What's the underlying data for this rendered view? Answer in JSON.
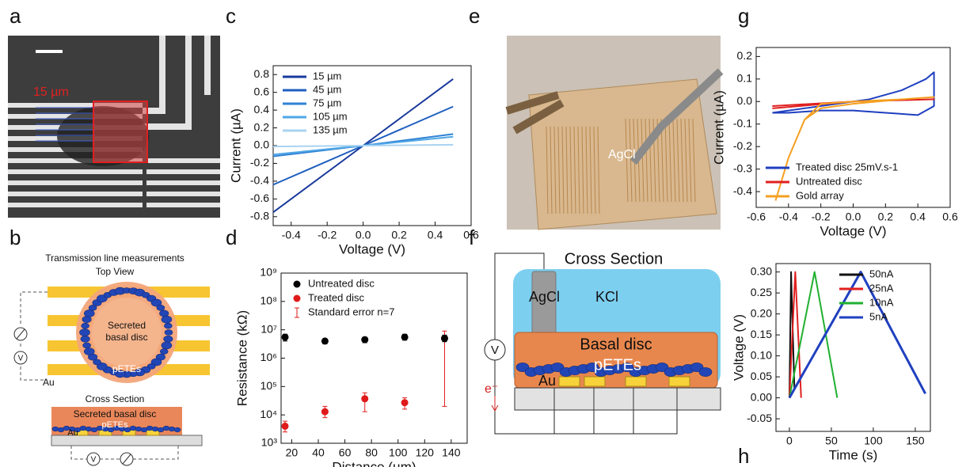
{
  "panel_labels": [
    "a",
    "b",
    "c",
    "d",
    "e",
    "f",
    "g",
    "h"
  ],
  "figure_a": {
    "scale_label": "15 µm"
  },
  "figure_b": {
    "title": "Transmission line measurements",
    "top_view": "Top View",
    "disc": [
      "Secreted",
      "basal disc"
    ],
    "electrodes": "pETEs",
    "gold": "Au",
    "voltmeter": "V",
    "cross_section": "Cross Section",
    "cs_disc": "Secreted basal disc",
    "cs_electrodes": "pETEs",
    "cs_gold": "Au",
    "cs_voltmeter": "V"
  },
  "figure_e": {
    "electrode": "AgCl"
  },
  "figure_f": {
    "title": "Cross Section",
    "electrode": "AgCl",
    "solution": "KCl",
    "disc": "Basal disc",
    "electrodes": "pETEs",
    "gold": "Au",
    "voltmeter": "V",
    "electron": "e⁻"
  },
  "chart_data": [
    {
      "type": "line",
      "xlabel": "Voltage (V)",
      "ylabel": "Current (µA)",
      "legend": "upper left",
      "xlim": [
        -0.5,
        0.6
      ],
      "ylim": [
        -0.9,
        0.9
      ],
      "xticks": [
        -0.4,
        -0.2,
        {
          "value": 0,
          "label": "0.0"
        },
        0.2,
        0.4,
        0.6
      ],
      "yticks": [
        -0.8,
        -0.6,
        -0.4,
        -0.2,
        {
          "value": 0,
          "label": "0.0"
        },
        0.2,
        0.4,
        0.6,
        0.8
      ],
      "x": [
        -0.5,
        0,
        0.5
      ],
      "series": [
        {
          "name": "15 µm",
          "color": "#1a3a9c",
          "values": [
            -0.75,
            0,
            0.75
          ]
        },
        {
          "name": "45 µm",
          "color": "#1f5fbf",
          "values": [
            -0.44,
            0,
            0.44
          ]
        },
        {
          "name": "75 µm",
          "color": "#2f82d4",
          "values": [
            -0.12,
            0,
            0.13
          ]
        },
        {
          "name": "105 µm",
          "color": "#4ea6e6",
          "values": [
            -0.1,
            0,
            0.1
          ]
        },
        {
          "name": "135 µm",
          "color": "#a9d3f2",
          "values": [
            -0.01,
            0,
            0.01
          ]
        }
      ]
    },
    {
      "type": "scatter",
      "xlabel": "Distance (µm)",
      "ylabel": "Resistance (kΩ)",
      "legend": "upper left",
      "yscale": "log",
      "xlim": [
        12,
        152
      ],
      "ylim": [
        1000,
        1000000000
      ],
      "xticks": [
        20,
        40,
        60,
        80,
        100,
        120,
        140
      ],
      "yticks": [
        {
          "value": 1000,
          "label": "10³"
        },
        {
          "value": 10000,
          "label": "10⁴"
        },
        {
          "value": 100000,
          "label": "10⁵"
        },
        {
          "value": 1000000,
          "label": "10⁶"
        },
        {
          "value": 10000000,
          "label": "10⁷"
        },
        {
          "value": 100000000,
          "label": "10⁸"
        },
        {
          "value": 1000000000,
          "label": "10⁹"
        }
      ],
      "x": [
        15,
        45,
        75,
        105,
        135
      ],
      "error_legend": "Standard error n=7",
      "series": [
        {
          "name": "Treated disc",
          "color": "#e01a1a",
          "values": [
            4000,
            13000,
            37000,
            27000,
            5000000
          ],
          "error_low": [
            2500,
            8000,
            13000,
            16000,
            20000
          ],
          "error_high": [
            6000,
            20000,
            60000,
            40000,
            9000000
          ]
        },
        {
          "name": "Untreated disc",
          "color": "#000000",
          "values": [
            5500000,
            4000000,
            4500000,
            5500000,
            5000000
          ],
          "error_low": [
            4000000,
            3200000,
            3500000,
            4300000,
            3800000
          ],
          "error_high": [
            7000000,
            4800000,
            5500000,
            7000000,
            6500000
          ]
        }
      ]
    },
    {
      "type": "line",
      "xlabel": "Voltage (V)",
      "ylabel": "Current (µA)",
      "legend": "lower left",
      "xlim": [
        -0.6,
        0.6
      ],
      "ylim": [
        -0.47,
        0.24
      ],
      "xticks": [
        -0.6,
        -0.4,
        -0.2,
        {
          "value": 0,
          "label": "0.0"
        },
        0.2,
        0.4,
        0.6
      ],
      "yticks": [
        -0.4,
        -0.3,
        -0.2,
        -0.1,
        {
          "value": 0,
          "label": "0.0"
        },
        0.1,
        0.2
      ],
      "series": [
        {
          "name": "Treated disc 25mV.s-1",
          "color": "#1f3fc0",
          "x": [
            -0.5,
            -0.3,
            -0.1,
            0.1,
            0.3,
            0.45,
            0.5,
            0.5,
            0.4,
            0.2,
            0,
            -0.2,
            -0.4,
            -0.5
          ],
          "values": [
            -0.05,
            -0.03,
            -0.01,
            0.01,
            0.05,
            0.1,
            0.13,
            -0.02,
            -0.06,
            -0.05,
            -0.04,
            -0.04,
            -0.05,
            -0.05
          ]
        },
        {
          "name": "Untreated disc",
          "color": "#e02020",
          "x": [
            -0.5,
            0,
            0.5,
            0,
            -0.5
          ],
          "values": [
            -0.03,
            0,
            0.01,
            0,
            -0.02
          ]
        },
        {
          "name": "Gold array",
          "color": "#f5a020",
          "x": [
            -0.48,
            -0.4,
            -0.3,
            -0.2,
            0,
            0.3,
            0.5,
            0.3,
            0,
            -0.2,
            -0.3,
            -0.4,
            -0.48
          ],
          "values": [
            -0.44,
            -0.25,
            -0.08,
            -0.01,
            0,
            0.01,
            0.02,
            0.01,
            -0.01,
            -0.03,
            -0.08,
            -0.25,
            -0.44
          ]
        }
      ]
    },
    {
      "type": "line",
      "xlabel": "Time (s)",
      "ylabel": "Voltage (V)",
      "legend": "upper right",
      "xlim": [
        -16,
        168
      ],
      "ylim": [
        -0.08,
        0.32
      ],
      "xticks": [
        0,
        50,
        100,
        150
      ],
      "yticks": [
        -0.05,
        {
          "value": 0,
          "label": "0.00"
        },
        0.05,
        {
          "value": 0.1,
          "label": "0.10"
        },
        0.15,
        {
          "value": 0.2,
          "label": "0.20"
        },
        0.25,
        {
          "value": 0.3,
          "label": "0.30"
        }
      ],
      "series": [
        {
          "name": "50nA",
          "color": "#111111",
          "x": [
            0,
            2,
            6
          ],
          "values": [
            0,
            0.3,
            0.02
          ]
        },
        {
          "name": "25nA",
          "color": "#e02020",
          "x": [
            0,
            7,
            14
          ],
          "values": [
            0,
            0.3,
            0
          ]
        },
        {
          "name": "10nA",
          "color": "#20b030",
          "x": [
            0,
            30,
            57
          ],
          "values": [
            0,
            0.3,
            0
          ]
        },
        {
          "name": "5nA",
          "color": "#2040c0",
          "x": [
            0,
            85,
            162
          ],
          "values": [
            0,
            0.3,
            0.01
          ]
        }
      ]
    }
  ]
}
